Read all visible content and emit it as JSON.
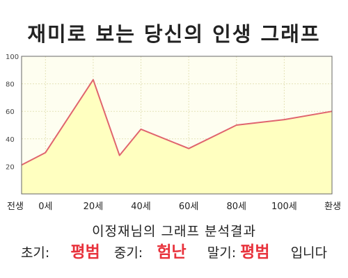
{
  "title": "재미로 보는 당신의 인생 그래프",
  "chart_data": {
    "type": "area",
    "x": [
      -10,
      0,
      20,
      31,
      40,
      60,
      80,
      100,
      120
    ],
    "y": [
      21,
      30,
      83,
      28,
      47,
      33,
      50,
      54,
      60
    ],
    "x_ticks": [
      {
        "x": -10,
        "label": "전생"
      },
      {
        "x": 0,
        "label": "0세"
      },
      {
        "x": 20,
        "label": "20세"
      },
      {
        "x": 40,
        "label": "40세"
      },
      {
        "x": 60,
        "label": "60세"
      },
      {
        "x": 80,
        "label": "80세"
      },
      {
        "x": 100,
        "label": "100세"
      },
      {
        "x": 120,
        "label": "환생"
      }
    ],
    "y_ticks": [
      20,
      40,
      60,
      80,
      100
    ],
    "xlim": [
      -10,
      120
    ],
    "ylim": [
      0,
      100
    ],
    "grid": true,
    "colors": {
      "line": "#e0646e",
      "fill": "#ffffc0",
      "plot_bg": "#fefef0",
      "grid": "#e4e2b8",
      "axis": "#666666"
    }
  },
  "result": {
    "title": "이정재님의 그래프 분석결과",
    "early_label": "초기:",
    "early_value": "평범",
    "middle_label": "중기:",
    "middle_value": "험난",
    "late_label": "말기:",
    "late_value": "평범",
    "ending": "입니다"
  }
}
